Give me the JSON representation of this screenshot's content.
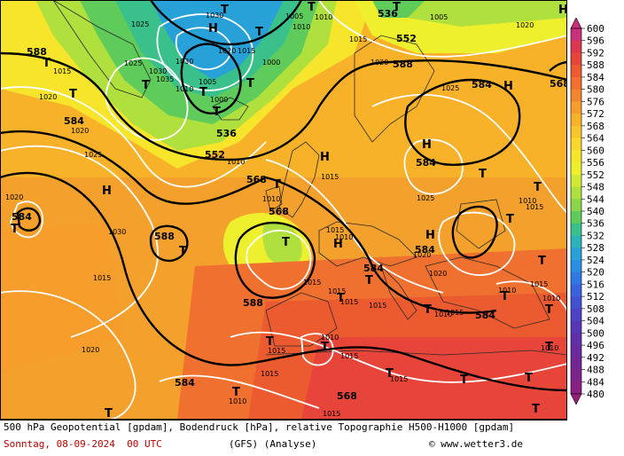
{
  "legend": {
    "ticks": [
      "600",
      "596",
      "592",
      "588",
      "584",
      "580",
      "576",
      "572",
      "568",
      "564",
      "560",
      "556",
      "552",
      "548",
      "544",
      "540",
      "536",
      "532",
      "528",
      "524",
      "520",
      "516",
      "512",
      "508",
      "504",
      "500",
      "496",
      "492",
      "488",
      "484",
      "480"
    ],
    "colors": [
      "#c8307a",
      "#dd3850",
      "#e8453a",
      "#ec5a30",
      "#f07030",
      "#f3862e",
      "#f69d2c",
      "#f8b22a",
      "#f9c52a",
      "#fad72b",
      "#f7e52c",
      "#eef02e",
      "#d2ea36",
      "#b0e03e",
      "#8ad548",
      "#5fcb5a",
      "#3ac08a",
      "#2cb3b8",
      "#28a1d8",
      "#2a8fe2",
      "#3078e4",
      "#3a62dc",
      "#4350d0",
      "#4c44c4",
      "#5638b6",
      "#6030aa",
      "#6a2aa0",
      "#742596",
      "#7e228c",
      "#882084",
      "#92207c"
    ]
  },
  "pressure": {
    "H": [
      "H",
      "H",
      "H",
      "H",
      "H",
      "H",
      "H",
      "H"
    ],
    "T": [
      "T",
      "T",
      "T",
      "T",
      "T",
      "T",
      "T",
      "T",
      "T",
      "T",
      "T",
      "T",
      "T",
      "T",
      "T",
      "T",
      "T",
      "T",
      "T",
      "T",
      "T",
      "T",
      "T",
      "T",
      "T",
      "T",
      "T",
      "T",
      "T",
      "T",
      "T",
      "T"
    ],
    "isobars": [
      "1025",
      "1030",
      "1025",
      "1030",
      "1035",
      "1030",
      "1020",
      "1015",
      "1020",
      "1015",
      "1010",
      "1005",
      "1000",
      "1005",
      "1000",
      "1010",
      "1010",
      "1015",
      "1020",
      "1005",
      "1020",
      "1025",
      "1020",
      "1025",
      "1030",
      "1015",
      "1010",
      "1015",
      "1020",
      "1010",
      "1015",
      "1020",
      "1025",
      "1010",
      "1015",
      "1010",
      "1015",
      "1020",
      "1015",
      "1020",
      "1010",
      "1015",
      "1015",
      "1015",
      "1010",
      "1015",
      "1015",
      "1015",
      "1015",
      "1010",
      "1015",
      "1010",
      "1010",
      "1015",
      "1010"
    ],
    "geopotential": [
      "588",
      "536",
      "552",
      "568",
      "584",
      "584",
      "552",
      "588",
      "568",
      "584",
      "588",
      "584",
      "584",
      "588",
      "584",
      "584",
      "536",
      "568",
      "584",
      "568"
    ]
  },
  "footer": {
    "line1": "500 hPa Geopotential [gpdam], Bodendruck [hPa], relative Topographie H500-H1000 [gpdam]",
    "date": "Sonntag, 08-09-2024  00 UTC",
    "model": "(GFS)  (Analyse)",
    "copyright": "www.wetter3.de",
    "copyright_symbol": "©"
  }
}
